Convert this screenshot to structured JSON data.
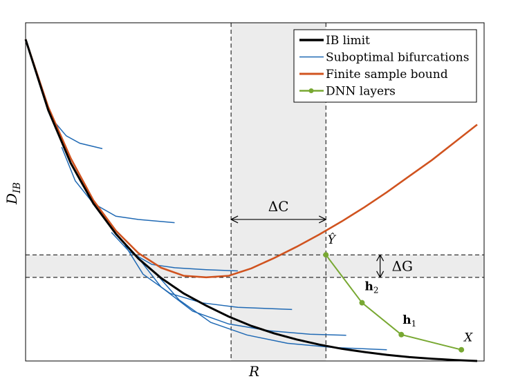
{
  "chart_data": {
    "type": "line",
    "title": "",
    "xlabel": "R",
    "ylabel": "D_IB",
    "grid": false,
    "legend_position": "top-right",
    "x_range": [
      0,
      1
    ],
    "y_range": [
      0,
      1
    ],
    "series": [
      {
        "name": "IB limit",
        "color": "#000000",
        "points": [
          [
            0.0,
            1.0
          ],
          [
            0.05,
            0.78
          ],
          [
            0.1,
            0.615
          ],
          [
            0.15,
            0.49
          ],
          [
            0.2,
            0.395
          ],
          [
            0.25,
            0.318
          ],
          [
            0.3,
            0.258
          ],
          [
            0.35,
            0.21
          ],
          [
            0.4,
            0.172
          ],
          [
            0.45,
            0.138
          ],
          [
            0.5,
            0.109
          ],
          [
            0.55,
            0.086
          ],
          [
            0.6,
            0.067
          ],
          [
            0.65,
            0.051
          ],
          [
            0.7,
            0.038
          ],
          [
            0.75,
            0.028
          ],
          [
            0.8,
            0.019
          ],
          [
            0.85,
            0.012
          ],
          [
            0.9,
            0.007
          ],
          [
            0.95,
            0.003
          ],
          [
            1.0,
            0.0
          ]
        ]
      },
      {
        "name": "Suboptimal bifurcations",
        "color": "#1f69b4",
        "lines": [
          [
            [
              0.04,
              0.83
            ],
            [
              0.06,
              0.75
            ],
            [
              0.09,
              0.7
            ],
            [
              0.12,
              0.677
            ],
            [
              0.17,
              0.66
            ]
          ],
          [
            [
              0.08,
              0.665
            ],
            [
              0.11,
              0.56
            ],
            [
              0.15,
              0.49
            ],
            [
              0.2,
              0.45
            ],
            [
              0.25,
              0.44
            ],
            [
              0.33,
              0.43
            ]
          ],
          [
            [
              0.19,
              0.4
            ],
            [
              0.23,
              0.34
            ],
            [
              0.28,
              0.3
            ],
            [
              0.33,
              0.29
            ],
            [
              0.4,
              0.284
            ],
            [
              0.47,
              0.28
            ]
          ],
          [
            [
              0.22,
              0.36
            ],
            [
              0.26,
              0.27
            ],
            [
              0.32,
              0.21
            ],
            [
              0.39,
              0.181
            ],
            [
              0.47,
              0.167
            ],
            [
              0.59,
              0.16
            ]
          ],
          [
            [
              0.25,
              0.32
            ],
            [
              0.3,
              0.23
            ],
            [
              0.37,
              0.155
            ],
            [
              0.45,
              0.115
            ],
            [
              0.54,
              0.094
            ],
            [
              0.63,
              0.083
            ],
            [
              0.71,
              0.08
            ]
          ],
          [
            [
              0.29,
              0.27
            ],
            [
              0.34,
              0.19
            ],
            [
              0.41,
              0.12
            ],
            [
              0.49,
              0.081
            ],
            [
              0.58,
              0.055
            ],
            [
              0.68,
              0.042
            ],
            [
              0.8,
              0.035
            ]
          ]
        ]
      },
      {
        "name": "Finite sample bound",
        "color": "#d0531f",
        "points": [
          [
            0.0,
            1.0
          ],
          [
            0.05,
            0.79
          ],
          [
            0.1,
            0.63
          ],
          [
            0.15,
            0.5
          ],
          [
            0.2,
            0.405
          ],
          [
            0.25,
            0.335
          ],
          [
            0.3,
            0.29
          ],
          [
            0.35,
            0.265
          ],
          [
            0.4,
            0.26
          ],
          [
            0.45,
            0.265
          ],
          [
            0.5,
            0.288
          ],
          [
            0.55,
            0.32
          ],
          [
            0.6,
            0.355
          ],
          [
            0.65,
            0.393
          ],
          [
            0.7,
            0.434
          ],
          [
            0.75,
            0.478
          ],
          [
            0.8,
            0.525
          ],
          [
            0.85,
            0.575
          ],
          [
            0.9,
            0.625
          ],
          [
            0.95,
            0.68
          ],
          [
            1.0,
            0.735
          ]
        ]
      },
      {
        "name": "DNN layers",
        "color": "#78a832",
        "points": [
          [
            0.665,
            0.33
          ],
          [
            0.745,
            0.181
          ],
          [
            0.832,
            0.082
          ],
          [
            0.965,
            0.035
          ]
        ],
        "point_labels": [
          "Ŷ",
          "h2",
          "h1",
          "X"
        ]
      }
    ],
    "annotations": [
      {
        "text": "ΔC",
        "type": "horizontal-double-arrow",
        "from_x": 0.455,
        "to_x": 0.665,
        "y": 0.44
      },
      {
        "text": "ΔG",
        "type": "vertical-double-arrow",
        "x": 0.785,
        "from_y": 0.26,
        "to_y": 0.33
      },
      {
        "type": "vertical-dashed-lines",
        "x": [
          0.455,
          0.665
        ]
      },
      {
        "type": "horizontal-dashed-lines",
        "y": [
          0.33,
          0.26
        ]
      }
    ]
  }
}
